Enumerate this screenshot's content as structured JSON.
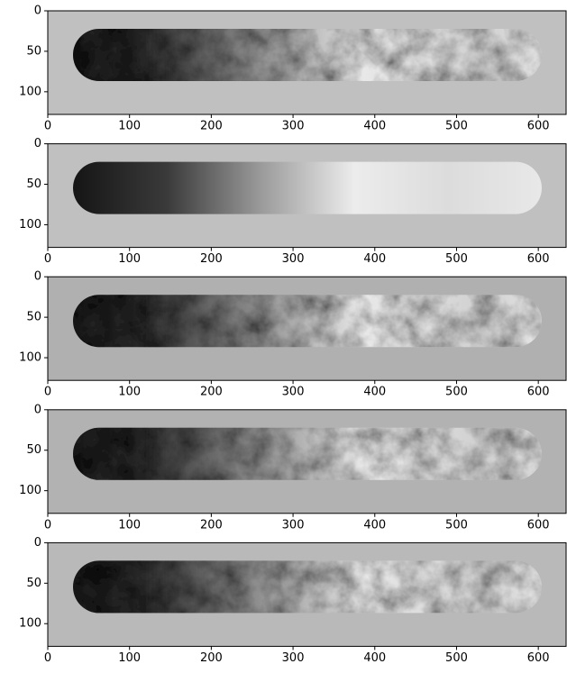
{
  "chart_data": [
    {
      "type": "image",
      "xlim": [
        0,
        634
      ],
      "ylim": [
        128,
        0
      ],
      "xticks": [
        0,
        100,
        200,
        300,
        400,
        500,
        600
      ],
      "yticks": [
        0,
        50,
        100
      ]
    },
    {
      "type": "image",
      "xlim": [
        0,
        634
      ],
      "ylim": [
        128,
        0
      ],
      "xticks": [
        0,
        100,
        200,
        300,
        400,
        500,
        600
      ],
      "yticks": [
        0,
        50,
        100
      ]
    },
    {
      "type": "image",
      "xlim": [
        0,
        634
      ],
      "ylim": [
        128,
        0
      ],
      "xticks": [
        0,
        100,
        200,
        300,
        400,
        500,
        600
      ],
      "yticks": [
        0,
        50,
        100
      ]
    },
    {
      "type": "image",
      "xlim": [
        0,
        634
      ],
      "ylim": [
        128,
        0
      ],
      "xticks": [
        0,
        100,
        200,
        300,
        400,
        500,
        600
      ],
      "yticks": [
        0,
        50,
        100
      ]
    },
    {
      "type": "image",
      "xlim": [
        0,
        634
      ],
      "ylim": [
        128,
        0
      ],
      "xticks": [
        0,
        100,
        200,
        300,
        400,
        500,
        600
      ],
      "yticks": [
        0,
        50,
        100
      ]
    }
  ]
}
